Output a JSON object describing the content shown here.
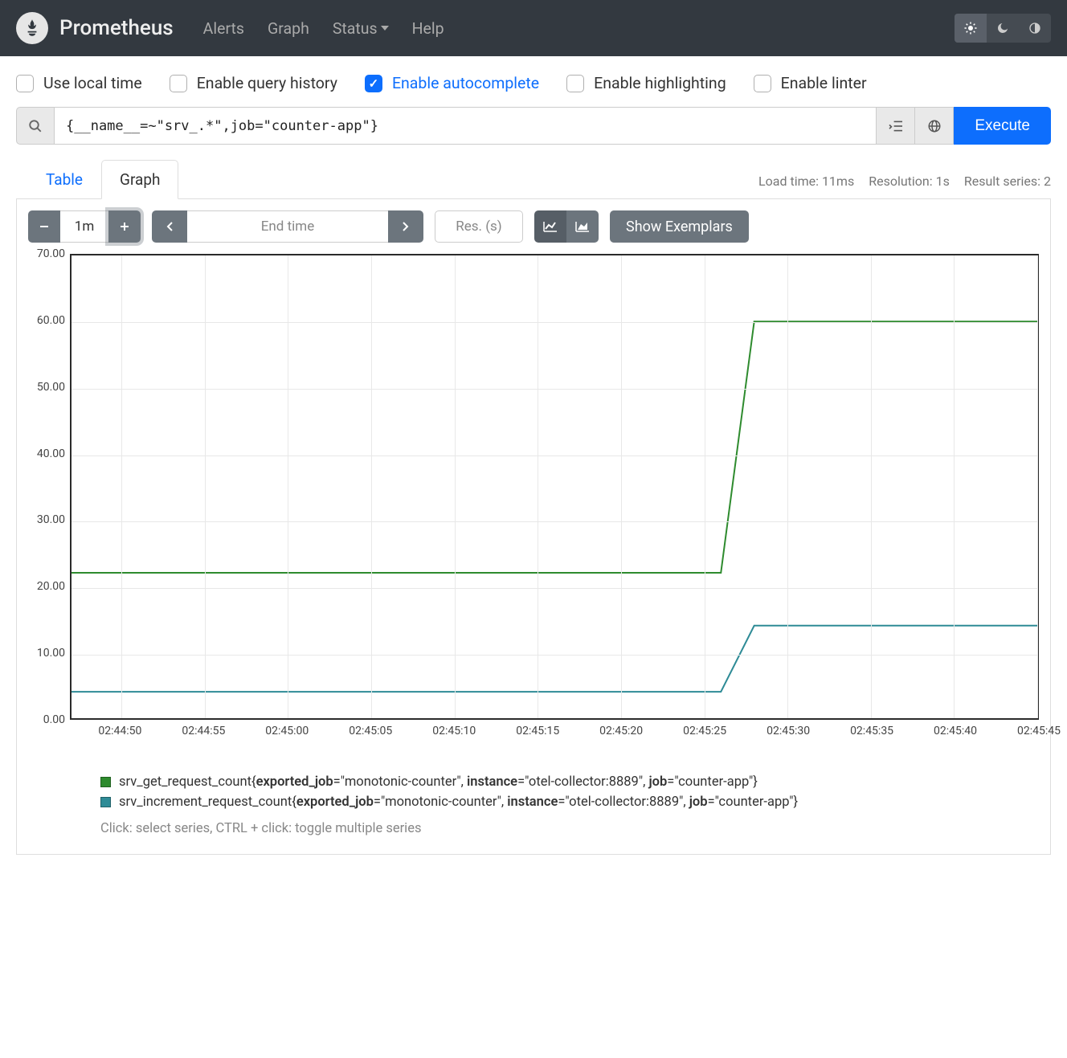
{
  "nav": {
    "brand": "Prometheus",
    "links": [
      "Alerts",
      "Graph",
      "Status",
      "Help"
    ],
    "status_has_caret": true
  },
  "options": [
    {
      "label": "Use local time",
      "checked": false
    },
    {
      "label": "Enable query history",
      "checked": false
    },
    {
      "label": "Enable autocomplete",
      "checked": true
    },
    {
      "label": "Enable highlighting",
      "checked": false
    },
    {
      "label": "Enable linter",
      "checked": false
    }
  ],
  "query": {
    "expression": "{__name__=~\"srv_.*\",job=\"counter-app\"}",
    "execute_label": "Execute"
  },
  "tabs": {
    "table": "Table",
    "graph": "Graph",
    "active": "graph"
  },
  "status": {
    "load_time": "Load time: 11ms",
    "resolution": "Resolution: 1s",
    "result_series": "Result series: 2"
  },
  "controls": {
    "range": "1m",
    "end_time_placeholder": "End time",
    "res_placeholder": "Res. (s)",
    "exemplars_label": "Show Exemplars"
  },
  "chart": {
    "type": "line",
    "y": {
      "min": 0,
      "max": 70,
      "ticks": [
        0,
        10,
        20,
        30,
        40,
        50,
        60,
        70
      ],
      "decimals": 2
    },
    "x": {
      "min_sec": 287,
      "max_sec": 345,
      "ticks_sec": [
        290,
        295,
        300,
        305,
        310,
        315,
        320,
        325,
        330,
        335,
        340,
        345
      ],
      "tick_labels": [
        "02:44:50",
        "02:44:55",
        "02:45:00",
        "02:45:05",
        "02:45:10",
        "02:45:15",
        "02:45:20",
        "02:45:25",
        "02:45:30",
        "02:45:35",
        "02:45:40",
        "02:45:45"
      ]
    },
    "grid_color": "#e8e8e8",
    "border_color": "#2b2b2b",
    "line_width": 2,
    "series": [
      {
        "name": "srv_get_request_count",
        "color": "#2e8b2e",
        "labels": {
          "exported_job": "monotonic-counter",
          "instance": "otel-collector:8889",
          "job": "counter-app"
        },
        "points": [
          [
            287,
            22
          ],
          [
            326,
            22
          ],
          [
            328,
            60
          ],
          [
            345,
            60
          ]
        ]
      },
      {
        "name": "srv_increment_request_count",
        "color": "#2e8b96",
        "labels": {
          "exported_job": "monotonic-counter",
          "instance": "otel-collector:8889",
          "job": "counter-app"
        },
        "points": [
          [
            287,
            4
          ],
          [
            326,
            4
          ],
          [
            328,
            14
          ],
          [
            345,
            14
          ]
        ]
      }
    ],
    "legend_hint": "Click: select series, CTRL + click: toggle multiple series"
  }
}
